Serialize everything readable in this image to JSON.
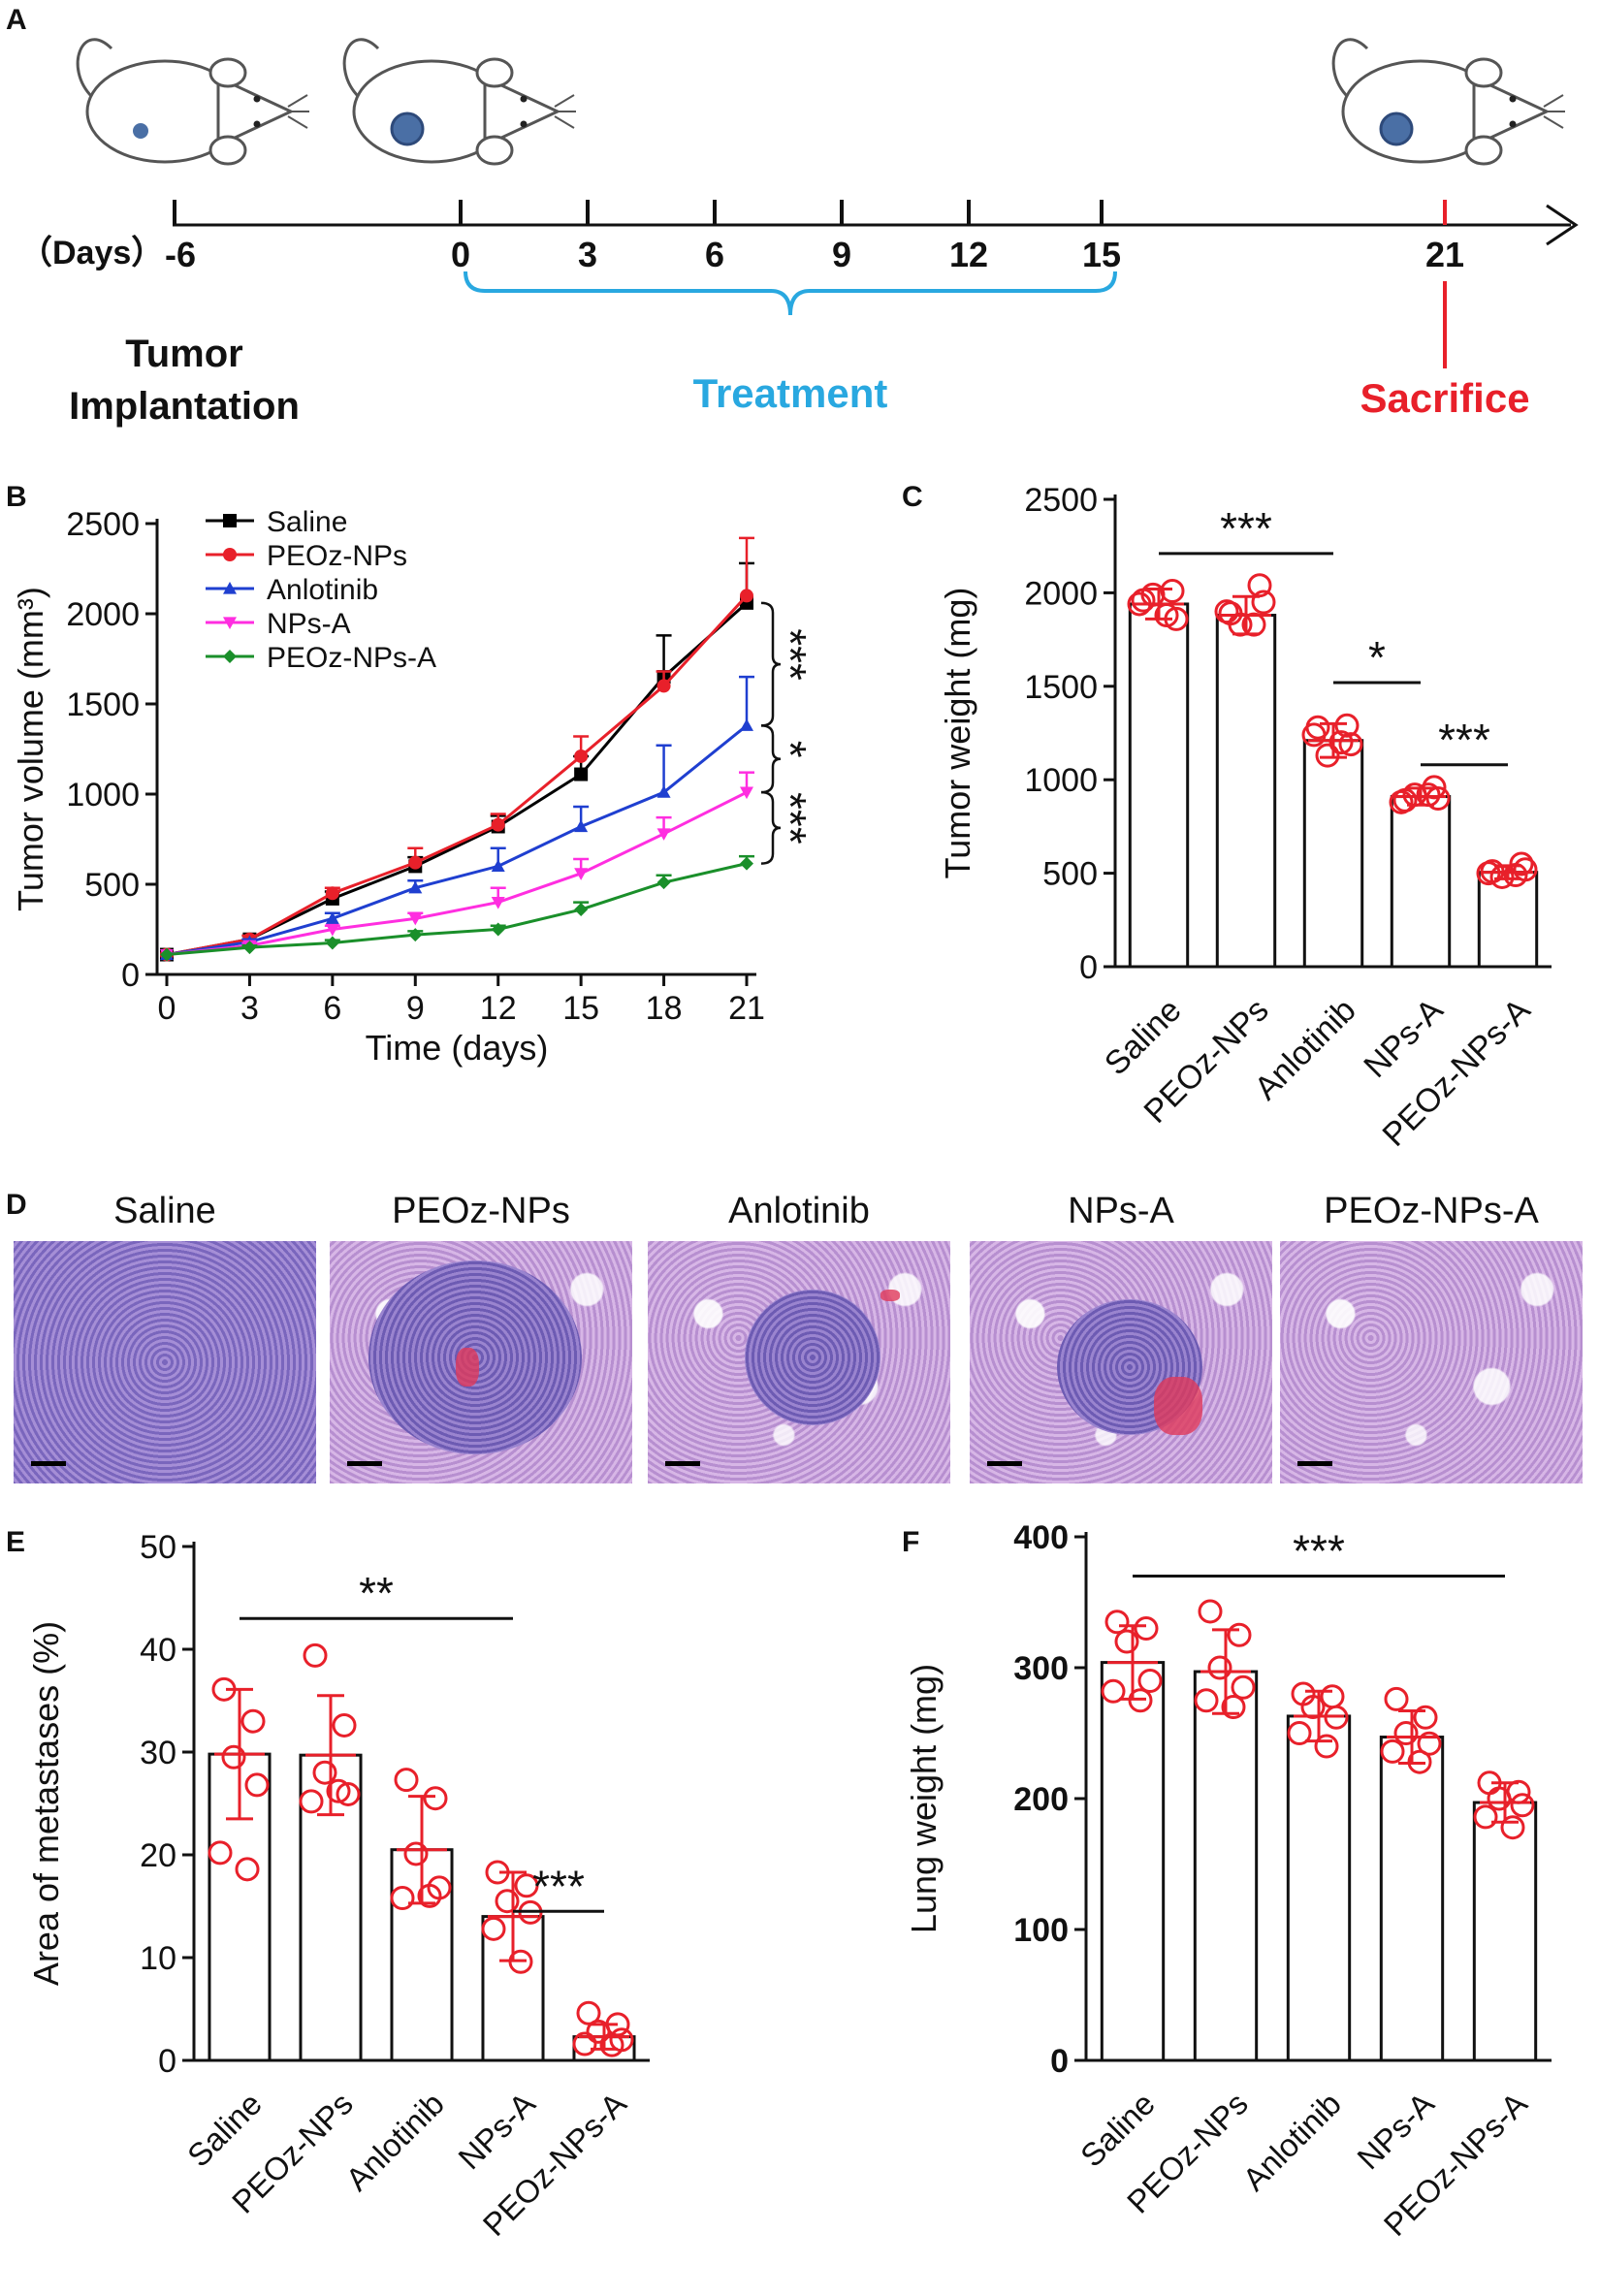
{
  "panels": {
    "A": {
      "label": "A",
      "days_label": "（Days）",
      "timeline_ticks": [
        "-6",
        "0",
        "3",
        "6",
        "9",
        "12",
        "15",
        "21"
      ],
      "tumor_implantation": [
        "Tumor",
        "Implantation"
      ],
      "treatment": "Treatment",
      "sacrifice": "Sacrifice",
      "colors": {
        "treatment": "#29a8e0",
        "sacrifice": "#e8202a",
        "tumor": "#4a6fa5"
      }
    },
    "B": {
      "label": "B"
    },
    "C": {
      "label": "C"
    },
    "D": {
      "label": "D",
      "titles": [
        "Saline",
        "PEOz-NPs",
        "Anlotinib",
        "NPs-A",
        "PEOz-NPs-A"
      ]
    },
    "E": {
      "label": "E"
    },
    "F": {
      "label": "F"
    }
  },
  "chart_data": [
    {
      "id": "B",
      "type": "line",
      "xlabel": "Time (days)",
      "ylabel": "Tumor volume (mm³)",
      "x": [
        0,
        3,
        6,
        9,
        12,
        15,
        18,
        21
      ],
      "xticks": [
        0,
        3,
        6,
        9,
        12,
        15,
        18,
        21
      ],
      "yticks": [
        0,
        500,
        1000,
        1500,
        2000,
        2500
      ],
      "xlim": [
        0,
        21
      ],
      "ylim": [
        0,
        2500
      ],
      "series": [
        {
          "name": "Saline",
          "color": "#000000",
          "marker": "square",
          "values": [
            110,
            195,
            420,
            600,
            820,
            1110,
            1650,
            2060
          ],
          "errors": [
            0,
            20,
            40,
            50,
            60,
            100,
            230,
            220
          ]
        },
        {
          "name": "PEOz-NPs",
          "color": "#e8202a",
          "marker": "circle",
          "values": [
            110,
            195,
            450,
            620,
            830,
            1210,
            1600,
            2100
          ],
          "errors": [
            0,
            20,
            30,
            80,
            60,
            110,
            80,
            320
          ]
        },
        {
          "name": "Anlotinib",
          "color": "#1f3fd0",
          "marker": "triangle",
          "values": [
            110,
            180,
            310,
            480,
            600,
            820,
            1010,
            1380
          ],
          "errors": [
            0,
            15,
            30,
            40,
            100,
            110,
            260,
            270
          ]
        },
        {
          "name": "NPs-A",
          "color": "#ff2ee0",
          "marker": "triangle-down",
          "values": [
            110,
            160,
            250,
            310,
            400,
            560,
            780,
            1010
          ],
          "errors": [
            0,
            15,
            20,
            30,
            80,
            80,
            90,
            110
          ]
        },
        {
          "name": "PEOz-NPs-A",
          "color": "#1a8f2a",
          "marker": "diamond",
          "values": [
            110,
            150,
            175,
            220,
            250,
            360,
            510,
            615
          ],
          "errors": [
            0,
            10,
            15,
            20,
            20,
            40,
            40,
            40
          ]
        }
      ],
      "significance": [
        "***",
        "*",
        "***"
      ]
    },
    {
      "id": "C",
      "type": "bar",
      "ylabel": "Tumor weight (mg)",
      "categories": [
        "Saline",
        "PEOz-NPs",
        "Anlotinib",
        "NPs-A",
        "PEOz-NPs-A"
      ],
      "values": [
        1940,
        1880,
        1210,
        910,
        505
      ],
      "errors": [
        80,
        100,
        90,
        45,
        35
      ],
      "points": [
        [
          1960,
          2010,
          1990,
          1860,
          1940,
          1880
        ],
        [
          1890,
          2040,
          1830,
          1950,
          1900,
          1830
        ],
        [
          1280,
          1290,
          1130,
          1190,
          1240,
          1200
        ],
        [
          890,
          960,
          920,
          900,
          880,
          920
        ],
        [
          510,
          550,
          480,
          520,
          500,
          490
        ]
      ],
      "yticks": [
        0,
        500,
        1000,
        1500,
        2000,
        2500
      ],
      "ylim": [
        0,
        2500
      ],
      "significance": [
        {
          "label": "***",
          "from": "Saline",
          "to": "Anlotinib"
        },
        {
          "label": "*",
          "from": "Anlotinib",
          "to": "NPs-A"
        },
        {
          "label": "***",
          "from": "NPs-A",
          "to": "PEOz-NPs-A"
        }
      ]
    },
    {
      "id": "E",
      "type": "bar",
      "ylabel": "Area of metastases (%)",
      "categories": [
        "Saline",
        "PEOz-NPs",
        "Anlotinib",
        "NPs-A",
        "PEOz-NPs-A"
      ],
      "values": [
        29.8,
        29.7,
        20.5,
        14.0,
        2.3
      ],
      "errors": [
        6.3,
        5.8,
        5.2,
        4.3,
        1.2
      ],
      "points": [
        [
          36.1,
          33.0,
          29.5,
          26.8,
          20.2,
          18.6
        ],
        [
          39.4,
          32.6,
          28.0,
          25.9,
          25.2,
          26.2
        ],
        [
          27.3,
          25.5,
          20.1,
          16.8,
          15.8,
          16.0
        ],
        [
          18.3,
          17.0,
          15.5,
          14.4,
          12.8,
          9.6
        ],
        [
          4.6,
          3.5,
          2.8,
          2.0,
          1.6,
          1.5
        ]
      ],
      "yticks": [
        0,
        10,
        20,
        30,
        40,
        50
      ],
      "ylim": [
        0,
        50
      ],
      "significance": [
        {
          "label": "**",
          "from": "Saline",
          "to": "NPs-A"
        },
        {
          "label": "***",
          "from": "NPs-A",
          "to": "PEOz-NPs-A"
        }
      ]
    },
    {
      "id": "F",
      "type": "bar",
      "ylabel": "Lung weight (mg)",
      "categories": [
        "Saline",
        "PEOz-NPs",
        "Anlotinib",
        "NPs-A",
        "PEOz-NPs-A"
      ],
      "values": [
        304,
        297,
        263,
        247,
        197
      ],
      "errors": [
        28,
        32,
        19,
        20,
        15
      ],
      "points": [
        [
          335,
          330,
          320,
          290,
          282,
          275
        ],
        [
          343,
          325,
          300,
          285,
          275,
          270
        ],
        [
          280,
          278,
          270,
          262,
          250,
          240
        ],
        [
          276,
          262,
          250,
          242,
          236,
          228
        ],
        [
          212,
          205,
          200,
          195,
          186,
          178
        ]
      ],
      "yticks": [
        0,
        100,
        200,
        300,
        400
      ],
      "ylim": [
        0,
        400
      ],
      "significance": [
        {
          "label": "***",
          "from": "Saline",
          "to": "PEOz-NPs-A"
        }
      ]
    }
  ]
}
